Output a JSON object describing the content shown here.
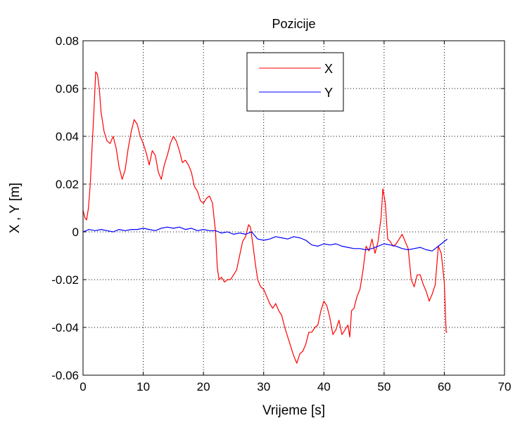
{
  "chart_data": {
    "type": "line",
    "title": "Pozicije",
    "xlabel": "Vrijeme [s]",
    "ylabel": "X , Y [m]",
    "xlim": [
      0,
      70
    ],
    "ylim": [
      -0.06,
      0.08
    ],
    "xticks": [
      0,
      10,
      20,
      30,
      40,
      50,
      60,
      70
    ],
    "yticks": [
      -0.06,
      -0.04,
      -0.02,
      0,
      0.02,
      0.04,
      0.06,
      0.08
    ],
    "xtick_labels": [
      "0",
      "10",
      "20",
      "30",
      "40",
      "50",
      "60",
      "70"
    ],
    "ytick_labels": [
      "-0.06",
      "-0.04",
      "-0.02",
      "0",
      "0.02",
      "0.04",
      "0.06",
      "0.08"
    ],
    "grid": true,
    "grid_style": "dotted",
    "legend_position": "top-center",
    "series": [
      {
        "name": "X",
        "color": "#ff0000",
        "x": [
          0,
          0.3,
          0.6,
          0.9,
          1.2,
          1.5,
          1.8,
          2.1,
          2.4,
          2.7,
          3.0,
          3.5,
          4.0,
          4.5,
          5.0,
          5.5,
          6.0,
          6.5,
          7.0,
          7.5,
          8.0,
          8.5,
          9.0,
          9.5,
          10.0,
          10.5,
          11.0,
          11.5,
          12.0,
          12.5,
          13.0,
          13.5,
          14.0,
          14.5,
          15.0,
          15.5,
          16.0,
          16.5,
          17.0,
          17.5,
          18.0,
          18.5,
          19.0,
          19.5,
          20.0,
          20.5,
          21.0,
          21.5,
          22.0,
          22.3,
          22.6,
          23.0,
          23.5,
          24.0,
          24.5,
          25.0,
          25.5,
          26.0,
          26.5,
          27.0,
          27.5,
          27.8,
          28.2,
          28.6,
          29.0,
          29.5,
          30.0,
          30.5,
          31.0,
          31.5,
          32.0,
          32.5,
          33.0,
          33.5,
          34.0,
          34.5,
          35.0,
          35.5,
          36.0,
          36.5,
          37.0,
          37.5,
          38.0,
          38.5,
          39.0,
          39.5,
          40.0,
          40.5,
          41.0,
          41.5,
          42.0,
          42.5,
          43.0,
          43.5,
          44.0,
          44.3,
          44.6,
          45.0,
          45.5,
          46.0,
          46.5,
          47.0,
          47.5,
          48.0,
          48.5,
          49.0,
          49.5,
          49.8,
          50.2,
          50.6,
          51.0,
          51.5,
          52.0,
          52.5,
          53.0,
          53.5,
          54.0,
          54.5,
          55.0,
          55.5,
          56.0,
          56.5,
          57.0,
          57.5,
          58.0,
          58.5,
          59.0,
          59.5,
          60.0,
          60.3,
          60.5
        ],
        "values": [
          0.009,
          0.006,
          0.005,
          0.01,
          0.02,
          0.035,
          0.05,
          0.067,
          0.066,
          0.06,
          0.05,
          0.042,
          0.038,
          0.037,
          0.04,
          0.035,
          0.027,
          0.022,
          0.026,
          0.035,
          0.042,
          0.047,
          0.045,
          0.04,
          0.037,
          0.033,
          0.028,
          0.034,
          0.032,
          0.025,
          0.022,
          0.028,
          0.032,
          0.037,
          0.04,
          0.038,
          0.034,
          0.029,
          0.03,
          0.028,
          0.025,
          0.019,
          0.017,
          0.013,
          0.012,
          0.014,
          0.015,
          0.012,
          0.0,
          -0.015,
          -0.02,
          -0.019,
          -0.021,
          -0.02,
          -0.02,
          -0.018,
          -0.016,
          -0.01,
          -0.004,
          -0.002,
          0.003,
          0.002,
          -0.005,
          -0.013,
          -0.02,
          -0.023,
          -0.024,
          -0.027,
          -0.03,
          -0.032,
          -0.03,
          -0.033,
          -0.035,
          -0.04,
          -0.044,
          -0.048,
          -0.052,
          -0.055,
          -0.051,
          -0.05,
          -0.047,
          -0.042,
          -0.042,
          -0.04,
          -0.039,
          -0.033,
          -0.029,
          -0.031,
          -0.036,
          -0.043,
          -0.041,
          -0.037,
          -0.043,
          -0.041,
          -0.039,
          -0.044,
          -0.033,
          -0.032,
          -0.027,
          -0.024,
          -0.016,
          -0.006,
          -0.008,
          -0.003,
          -0.009,
          -0.004,
          0.006,
          0.018,
          0.012,
          -0.003,
          -0.004,
          -0.006,
          -0.005,
          -0.003,
          -0.001,
          -0.004,
          -0.007,
          -0.02,
          -0.023,
          -0.018,
          -0.018,
          -0.022,
          -0.025,
          -0.029,
          -0.026,
          -0.022,
          -0.006,
          -0.009,
          -0.021,
          -0.042,
          -0.042
        ]
      },
      {
        "name": "Y",
        "color": "#0000ff",
        "x": [
          0,
          1,
          2,
          3,
          4,
          5,
          6,
          7,
          8,
          9,
          10,
          11,
          12,
          13,
          14,
          15,
          16,
          17,
          18,
          19,
          20,
          21,
          22,
          23,
          24,
          25,
          26,
          27,
          28,
          29,
          30,
          31,
          32,
          33,
          34,
          35,
          36,
          37,
          38,
          39,
          40,
          41,
          42,
          43,
          44,
          45,
          46,
          47,
          48,
          49,
          50,
          51,
          52,
          53,
          54,
          55,
          56,
          57,
          58,
          59,
          60,
          60.5
        ],
        "values": [
          0.0,
          0.001,
          0.0005,
          0.001,
          0.0005,
          0.0,
          0.001,
          0.0005,
          0.001,
          0.001,
          0.0015,
          0.001,
          0.0005,
          0.0015,
          0.002,
          0.0015,
          0.002,
          0.001,
          0.0015,
          0.0005,
          0.001,
          0.0005,
          0.0005,
          -0.0005,
          0.0,
          -0.001,
          -0.0005,
          -0.001,
          0.0,
          -0.003,
          -0.0035,
          -0.003,
          -0.002,
          -0.0025,
          -0.003,
          -0.002,
          -0.0025,
          -0.0035,
          -0.0055,
          -0.006,
          -0.005,
          -0.0055,
          -0.005,
          -0.006,
          -0.0065,
          -0.007,
          -0.007,
          -0.0075,
          -0.007,
          -0.006,
          -0.005,
          -0.0055,
          -0.006,
          -0.007,
          -0.0075,
          -0.007,
          -0.0065,
          -0.0075,
          -0.008,
          -0.006,
          -0.004,
          -0.003
        ]
      }
    ]
  }
}
